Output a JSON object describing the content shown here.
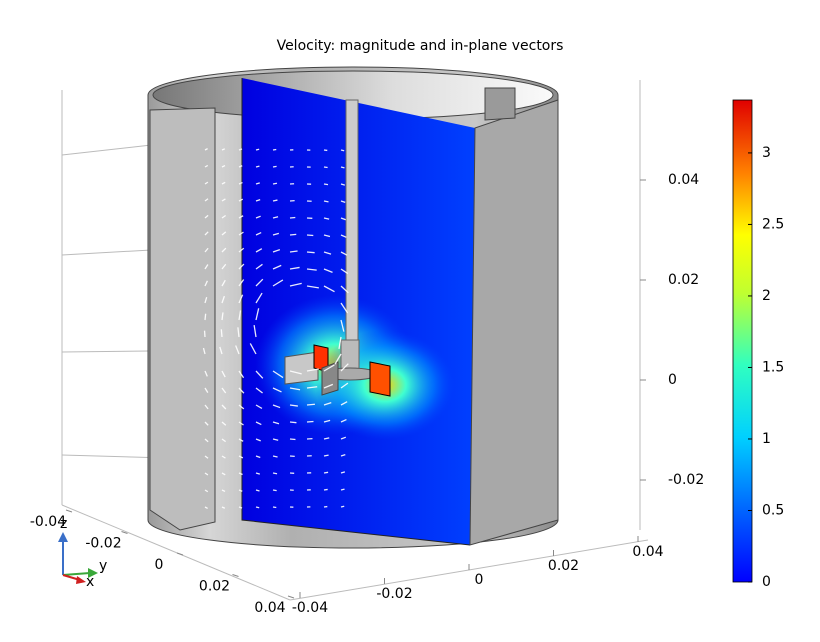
{
  "chart_data": {
    "type": "surface3d",
    "title": "Velocity: magnitude and in-plane vectors",
    "xlim": [
      -0.04,
      0.04
    ],
    "xticks": [
      -0.04,
      -0.02,
      0,
      0.02,
      0.04
    ],
    "ylim": [
      -0.04,
      0.04
    ],
    "yticks": [
      -0.04,
      -0.02,
      0,
      0.02,
      0.04
    ],
    "zlim": [
      -0.03,
      0.06
    ],
    "zticks": [
      -0.02,
      0,
      0.02,
      0.04
    ],
    "colorbar": {
      "lim": [
        0,
        3.37
      ],
      "ticks": [
        0,
        0.5,
        1,
        1.5,
        2,
        2.5,
        3
      ]
    },
    "triad": {
      "x": "x",
      "y": "y",
      "z": "z"
    }
  }
}
